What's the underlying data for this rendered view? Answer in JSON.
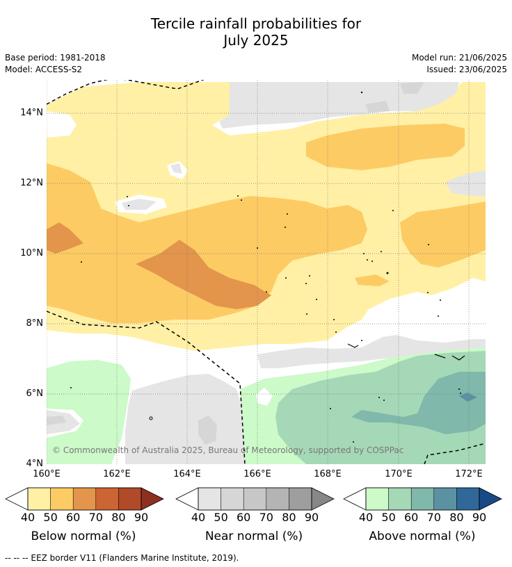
{
  "title": {
    "line1": "Tercile rainfall probabilities for",
    "line2": "July 2025"
  },
  "meta": {
    "base_period": "Base period: 1981-2018",
    "model": "Model: ACCESS-S2",
    "model_run": "Model run: 21/06/2025",
    "issued": "Issued: 23/06/2025"
  },
  "map": {
    "lon_range": [
      160,
      172.5
    ],
    "lat_range": [
      4,
      15
    ],
    "y_ticks": [
      "14°N",
      "12°N",
      "10°N",
      "8°N",
      "6°N",
      "4°N"
    ],
    "x_ticks": [
      "160°E",
      "162°E",
      "164°E",
      "166°E",
      "168°E",
      "170°E",
      "172°E"
    ],
    "copyright": "© Commonwealth of Australia 2025, Bureau of Meteorology, supported by COSPPac"
  },
  "colorbars": [
    {
      "name": "below",
      "title": "Below normal (%)",
      "labels": [
        "40",
        "50",
        "60",
        "70",
        "80",
        "90"
      ],
      "colors": [
        "#fff0a5",
        "#fdcb64",
        "#e2954b",
        "#cd6434",
        "#b04a28",
        "#8e3020"
      ]
    },
    {
      "name": "near",
      "title": "Near normal (%)",
      "labels": [
        "40",
        "50",
        "60",
        "70",
        "80",
        "90"
      ],
      "colors": [
        "#e5e5e5",
        "#d6d6d6",
        "#c7c7c7",
        "#b4b4b4",
        "#9e9e9e",
        "#878787"
      ]
    },
    {
      "name": "above",
      "title": "Above normal (%)",
      "labels": [
        "40",
        "50",
        "60",
        "70",
        "80",
        "90"
      ],
      "colors": [
        "#ccfac9",
        "#a5d8b6",
        "#80b8ab",
        "#5b92a2",
        "#2f6899",
        "#1a4a85"
      ]
    }
  ],
  "footer": "--  --  -- EEZ border V11 (Flanders Marine Institute, 2019)."
}
